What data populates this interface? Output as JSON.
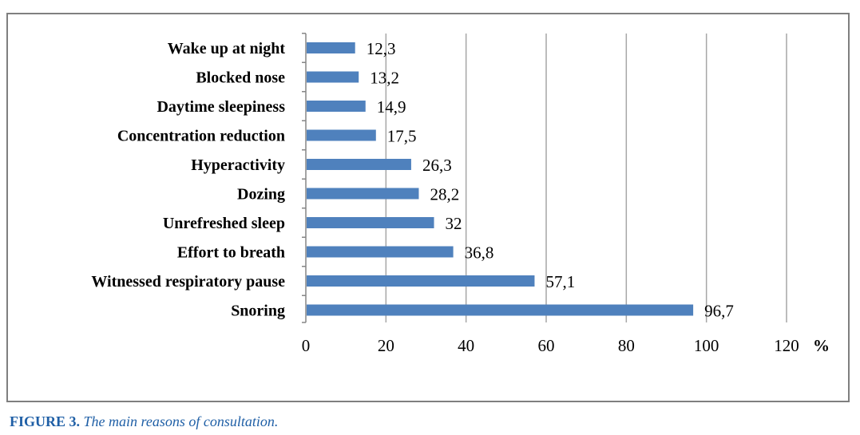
{
  "chart_data": {
    "type": "bar",
    "orientation": "horizontal",
    "categories": [
      "Wake up at night",
      "Blocked nose",
      "Daytime sleepiness",
      "Concentration reduction",
      "Hyperactivity",
      "Dozing",
      "Unrefreshed sleep",
      "Effort to breath",
      "Witnessed respiratory pause",
      "Snoring"
    ],
    "values": [
      12.3,
      13.2,
      14.9,
      17.5,
      26.3,
      28.2,
      32,
      36.8,
      57.1,
      96.7
    ],
    "value_labels": [
      "12,3",
      "13,2",
      "14,9",
      "17,5",
      "26,3",
      "28,2",
      "32",
      "36,8",
      "57,1",
      "96,7"
    ],
    "xlim": [
      0,
      120
    ],
    "xticks": [
      0,
      20,
      40,
      60,
      80,
      100,
      120
    ],
    "xunit": "%",
    "grid": "vertical",
    "bar_color": "#4f81bd"
  },
  "caption": {
    "number": "FIGURE 3.",
    "text": "The main reasons of consultation."
  }
}
